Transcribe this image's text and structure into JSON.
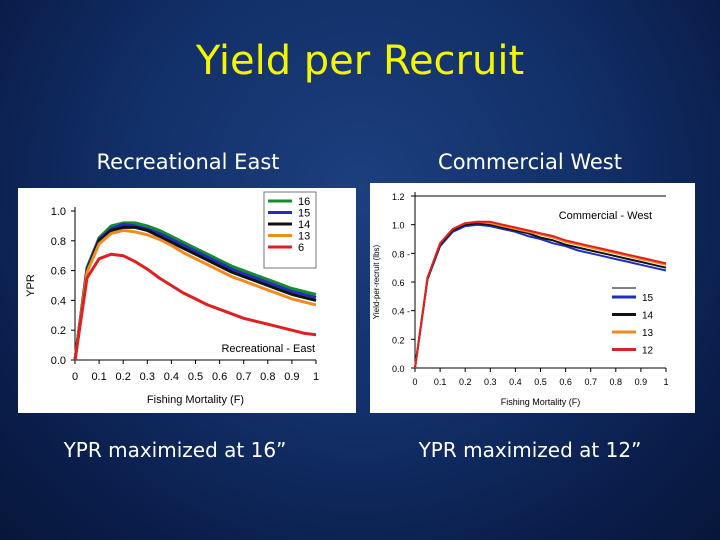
{
  "slide": {
    "title": "Yield per Recruit",
    "left_heading": "Recreational East",
    "right_heading": "Commercial West",
    "left_caption": "YPR maximized at 16”",
    "right_caption": "YPR maximized at 12”"
  },
  "chart_data": [
    {
      "type": "line",
      "annotation": "Recreational - East",
      "xlabel": "Fishing Mortality (F)",
      "ylabel": "YPR",
      "xlim": [
        0,
        1
      ],
      "ylim": [
        0,
        1.0
      ],
      "xticks": [
        "0",
        "0.1",
        "0.2",
        "0.3",
        "0.4",
        "0.5",
        "0.6",
        "0.7",
        "0.8",
        "0.9",
        "1"
      ],
      "yticks": [
        "0.0",
        "0.2",
        "0.4",
        "0.6",
        "0.8",
        "1.0"
      ],
      "legend_position": "top-right",
      "x": [
        0,
        0.05,
        0.1,
        0.15,
        0.2,
        0.25,
        0.3,
        0.35,
        0.4,
        0.45,
        0.5,
        0.55,
        0.6,
        0.65,
        0.7,
        0.75,
        0.8,
        0.85,
        0.9,
        0.95,
        1.0
      ],
      "series": [
        {
          "name": "16",
          "color": "#1a8a2a",
          "values": [
            0.0,
            0.62,
            0.82,
            0.9,
            0.92,
            0.92,
            0.9,
            0.87,
            0.83,
            0.79,
            0.75,
            0.71,
            0.67,
            0.63,
            0.6,
            0.57,
            0.54,
            0.51,
            0.48,
            0.46,
            0.44
          ]
        },
        {
          "name": "15",
          "color": "#1c2fc0",
          "values": [
            0.0,
            0.61,
            0.81,
            0.88,
            0.91,
            0.9,
            0.88,
            0.85,
            0.81,
            0.77,
            0.73,
            0.69,
            0.65,
            0.61,
            0.58,
            0.55,
            0.52,
            0.49,
            0.46,
            0.44,
            0.42
          ]
        },
        {
          "name": "14",
          "color": "#111111",
          "values": [
            0.0,
            0.6,
            0.8,
            0.87,
            0.89,
            0.89,
            0.87,
            0.83,
            0.79,
            0.75,
            0.71,
            0.67,
            0.63,
            0.59,
            0.56,
            0.53,
            0.5,
            0.47,
            0.44,
            0.42,
            0.4
          ]
        },
        {
          "name": "13",
          "color": "#f28a1e",
          "values": [
            0.0,
            0.59,
            0.78,
            0.85,
            0.87,
            0.86,
            0.84,
            0.81,
            0.77,
            0.72,
            0.68,
            0.64,
            0.6,
            0.56,
            0.53,
            0.5,
            0.47,
            0.44,
            0.41,
            0.39,
            0.37
          ]
        },
        {
          "name": "6",
          "color": "#e02020",
          "values": [
            0.0,
            0.55,
            0.68,
            0.71,
            0.7,
            0.66,
            0.61,
            0.55,
            0.5,
            0.45,
            0.41,
            0.37,
            0.34,
            0.31,
            0.28,
            0.26,
            0.24,
            0.22,
            0.2,
            0.18,
            0.17
          ]
        }
      ]
    },
    {
      "type": "line",
      "annotation": "Commercial - West",
      "xlabel": "Fishing Mortality (F)",
      "ylabel": "Yield-per-recruit (lbs)",
      "xlim": [
        0,
        1
      ],
      "ylim": [
        0,
        1.2
      ],
      "xticks": [
        "0",
        "0.1",
        "0.2",
        "0.3",
        "0.4",
        "0.5",
        "0.6",
        "0.7",
        "0.8",
        "0.9",
        "1"
      ],
      "yticks": [
        "0.0",
        "0.2",
        "0.4 -",
        "0.6",
        "0.8 -",
        "1.0",
        "1.2"
      ],
      "legend_position": "bottom-right",
      "x": [
        0,
        0.05,
        0.1,
        0.15,
        0.2,
        0.25,
        0.3,
        0.35,
        0.4,
        0.45,
        0.5,
        0.55,
        0.6,
        0.65,
        0.7,
        0.75,
        0.8,
        0.85,
        0.9,
        0.95,
        1.0
      ],
      "series": [
        {
          "name": "15",
          "color": "#1c2fc0",
          "values": [
            0.0,
            0.62,
            0.85,
            0.95,
            0.99,
            1.0,
            0.99,
            0.97,
            0.95,
            0.92,
            0.9,
            0.87,
            0.85,
            0.82,
            0.8,
            0.78,
            0.76,
            0.74,
            0.72,
            0.7,
            0.68
          ]
        },
        {
          "name": "14",
          "color": "#111111",
          "values": [
            0.0,
            0.62,
            0.86,
            0.96,
            1.0,
            1.01,
            1.0,
            0.98,
            0.96,
            0.94,
            0.91,
            0.89,
            0.86,
            0.84,
            0.82,
            0.8,
            0.78,
            0.76,
            0.74,
            0.72,
            0.7
          ]
        },
        {
          "name": "13",
          "color": "#f28a1e",
          "values": [
            0.0,
            0.63,
            0.87,
            0.97,
            1.01,
            1.02,
            1.01,
            0.99,
            0.97,
            0.95,
            0.93,
            0.91,
            0.88,
            0.86,
            0.84,
            0.82,
            0.8,
            0.78,
            0.76,
            0.74,
            0.72
          ]
        },
        {
          "name": "12",
          "color": "#e02020",
          "values": [
            0.0,
            0.63,
            0.87,
            0.97,
            1.01,
            1.02,
            1.02,
            1.0,
            0.98,
            0.96,
            0.94,
            0.92,
            0.89,
            0.87,
            0.85,
            0.83,
            0.81,
            0.79,
            0.77,
            0.75,
            0.73
          ]
        }
      ]
    }
  ]
}
